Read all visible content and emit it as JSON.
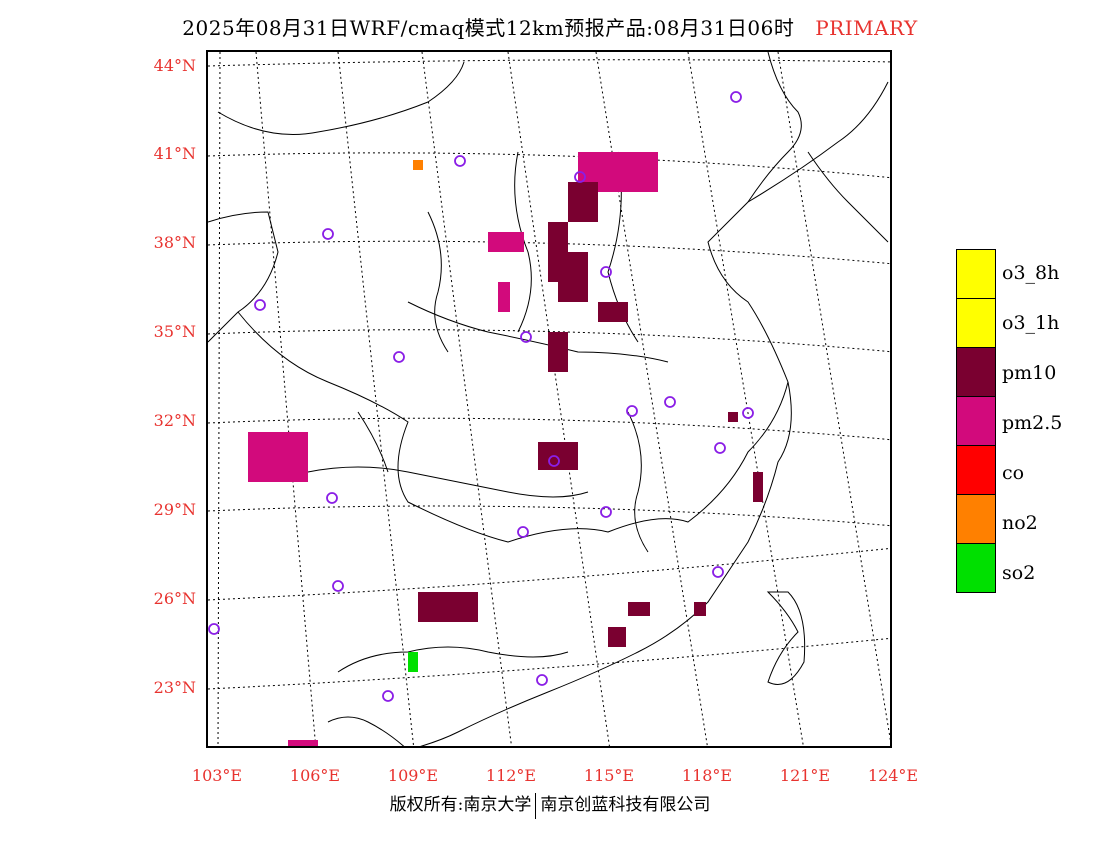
{
  "title": {
    "main": "2025年08月31日WRF/cmaq模式12km预报产品:08月31日06时",
    "tag": "PRIMARY",
    "tag_color": "#e8332f"
  },
  "axes": {
    "lat_labels": [
      "44°N",
      "41°N",
      "38°N",
      "35°N",
      "32°N",
      "29°N",
      "26°N",
      "23°N"
    ],
    "lon_labels": [
      "103°E",
      "106°E",
      "109°E",
      "112°E",
      "115°E",
      "118°E",
      "121°E",
      "124°E"
    ],
    "label_color": "#e8332f"
  },
  "legend": {
    "items": [
      {
        "label": "o3_8h",
        "color": "#ffff00"
      },
      {
        "label": "o3_1h",
        "color": "#ffff00"
      },
      {
        "label": "pm10",
        "color": "#7a0030"
      },
      {
        "label": "pm2.5",
        "color": "#d20a7c"
      },
      {
        "label": "co",
        "color": "#ff0000"
      },
      {
        "label": "no2",
        "color": "#ff8000"
      },
      {
        "label": "so2",
        "color": "#00e000"
      }
    ]
  },
  "footer": {
    "left": "版权所有:南京大学",
    "right": "南京创蓝科技有限公司"
  }
}
